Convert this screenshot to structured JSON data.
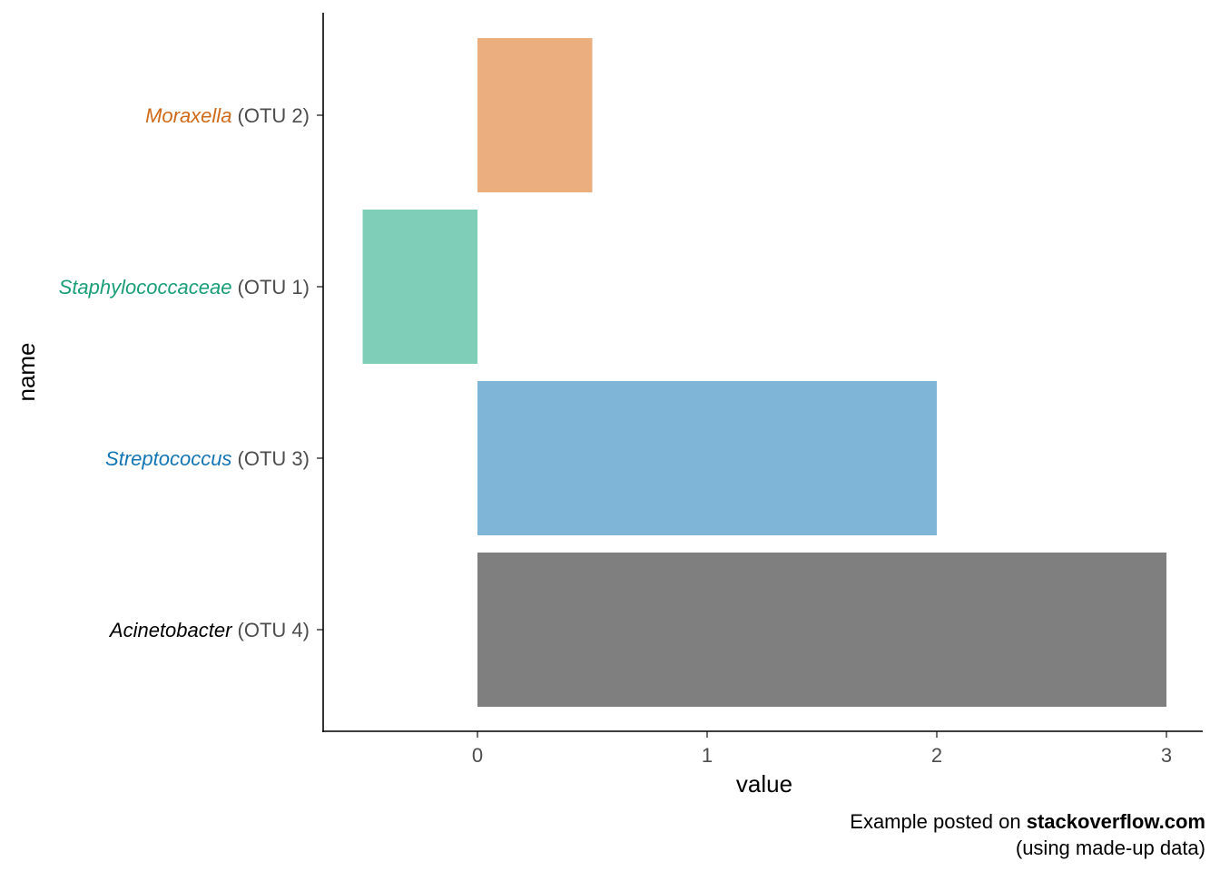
{
  "chart_data": {
    "type": "bar",
    "orientation": "horizontal",
    "xlabel": "value",
    "ylabel": "name",
    "xlim": [
      -0.67,
      3.14
    ],
    "x_ticks": [
      "0",
      "1",
      "2",
      "3"
    ],
    "grid": false,
    "categories": [
      {
        "genus": "Moraxella",
        "otu": "(OTU 2)",
        "value": 0.5,
        "color": "#EBAE7E",
        "label_color": "#D06A1B"
      },
      {
        "genus": "Staphylococcaceae",
        "otu": "(OTU 1)",
        "value": -0.5,
        "color": "#7FCFB8",
        "label_color": "#1A9E77"
      },
      {
        "genus": "Streptococcus",
        "otu": "(OTU 3)",
        "value": 2,
        "color": "#7FB6D8",
        "label_color": "#1475B5"
      },
      {
        "genus": "Acinetobacter",
        "otu": "(OTU 4)",
        "value": 3,
        "color": "#7F7F7F",
        "label_color": "#000000"
      }
    ]
  },
  "caption": {
    "line1_prefix": "Example posted on ",
    "line1_bold": "stackoverflow.com",
    "line2": "(using made-up data)"
  }
}
